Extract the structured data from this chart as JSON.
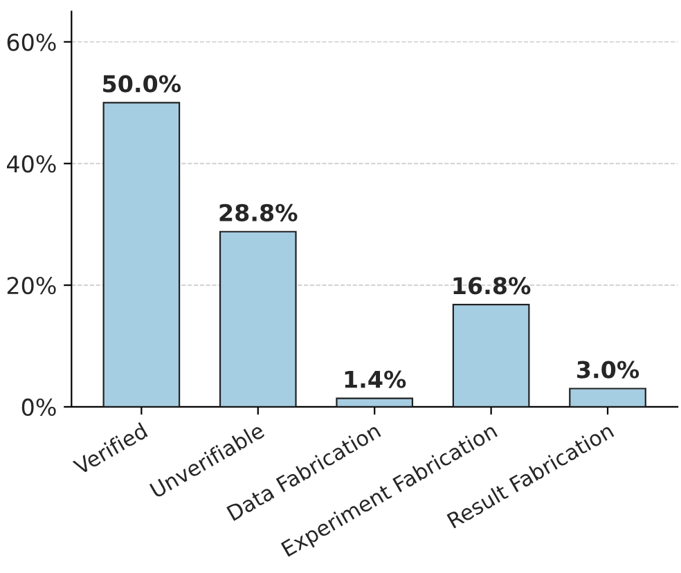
{
  "chart_data": {
    "type": "bar",
    "categories": [
      "Verified",
      "Unverifiable",
      "Data Fabrication",
      "Experiment Fabrication",
      "Result Fabrication"
    ],
    "values": [
      50.0,
      28.8,
      1.4,
      16.8,
      3.0
    ],
    "value_labels": [
      "50.0%",
      "28.8%",
      "1.4%",
      "16.8%",
      "3.0%"
    ],
    "color": "#a6cee3",
    "ylim": [
      0,
      65
    ],
    "yticks": [
      {
        "value": 0,
        "label": "0%"
      },
      {
        "value": 20,
        "label": "20%"
      },
      {
        "value": 40,
        "label": "40%"
      },
      {
        "value": 60,
        "label": "60%"
      }
    ],
    "grid": "y"
  }
}
